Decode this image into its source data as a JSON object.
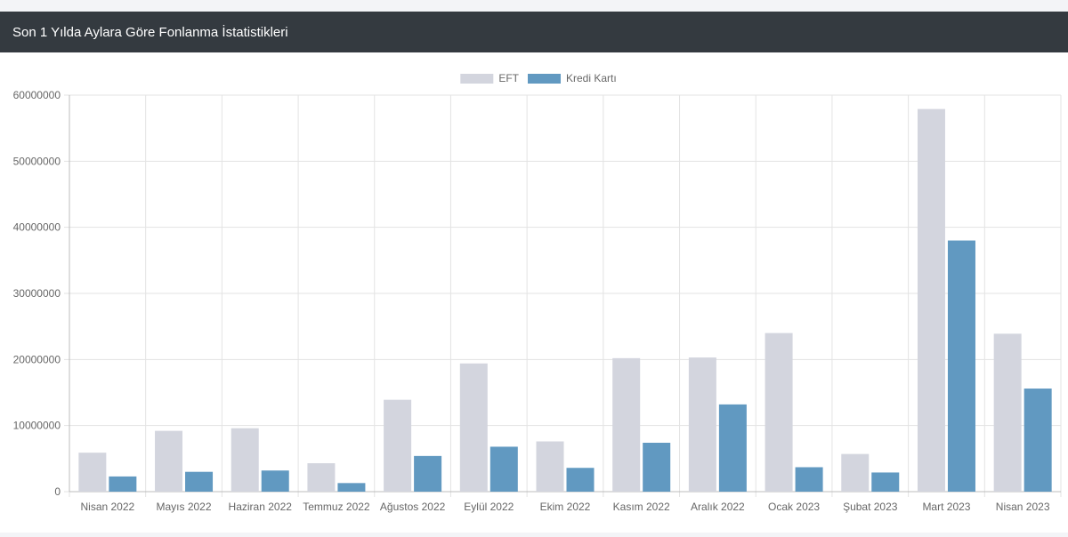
{
  "card": {
    "title": "Son 1 Yılda Aylara Göre Fonlanma İstatistikleri"
  },
  "chart_data": {
    "type": "bar",
    "categories": [
      "Nisan 2022",
      "Mayıs 2022",
      "Haziran 2022",
      "Temmuz 2022",
      "Ağustos 2022",
      "Eylül 2022",
      "Ekim 2022",
      "Kasım 2022",
      "Aralık 2022",
      "Ocak 2023",
      "Şubat 2023",
      "Mart 2023",
      "Nisan 2023"
    ],
    "series": [
      {
        "name": "EFT",
        "color": "#d3d5de",
        "values": [
          5900000,
          9200000,
          9600000,
          4300000,
          13900000,
          19400000,
          7600000,
          20200000,
          20300000,
          24000000,
          5700000,
          57900000,
          23900000
        ]
      },
      {
        "name": "Kredi Kartı",
        "color": "#6199c1",
        "values": [
          2300000,
          3000000,
          3200000,
          1300000,
          5400000,
          6800000,
          3600000,
          7400000,
          13200000,
          3700000,
          2900000,
          38000000,
          15600000
        ]
      }
    ],
    "yticks": [
      "0",
      "10000000",
      "20000000",
      "30000000",
      "40000000",
      "50000000",
      "60000000"
    ],
    "ylim": [
      0,
      60000000
    ],
    "grid": true,
    "legend": "top-center"
  }
}
